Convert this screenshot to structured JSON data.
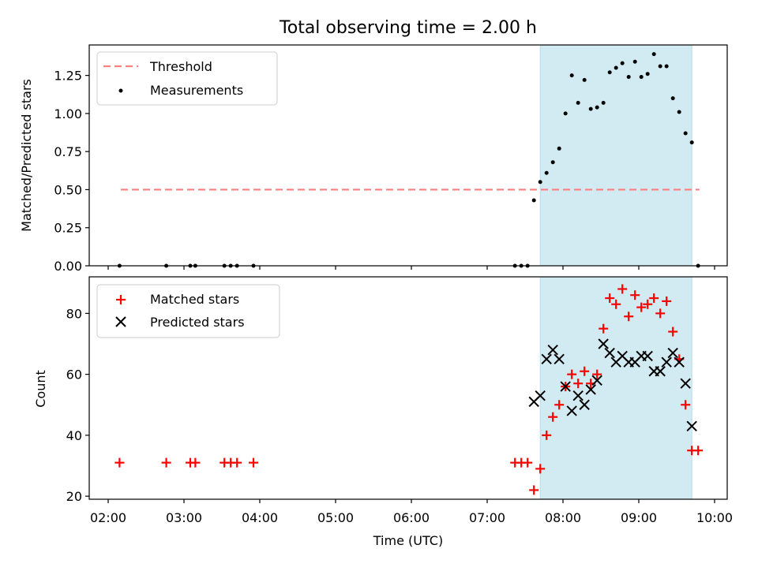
{
  "title": "Total observing time = 2.00 h",
  "chart_data": [
    {
      "type": "scatter",
      "ylabel": "Matched/Predicted stars",
      "ylim": [
        0,
        1.45
      ],
      "xlim": [
        "01:45",
        "10:10"
      ],
      "yticks": [
        0.0,
        0.25,
        0.5,
        0.75,
        1.0,
        1.25
      ],
      "yticklabels": [
        "0.00",
        "0.25",
        "0.50",
        "0.75",
        "1.00",
        "1.25"
      ],
      "grid": false,
      "legend_position": "top-left",
      "shaded_span": {
        "start": "07:42",
        "end": "09:42",
        "color": "#add8e6"
      },
      "threshold": {
        "name": "Threshold",
        "value": 0.5,
        "x": [
          "02:10",
          "09:48"
        ],
        "color": "#ff7f7f",
        "style": "dashed"
      },
      "series": [
        {
          "name": "Measurements",
          "marker": "dot",
          "color": "#000000",
          "points": [
            [
              "02:09",
              0
            ],
            [
              "02:46",
              0
            ],
            [
              "03:05",
              0
            ],
            [
              "03:09",
              0
            ],
            [
              "03:32",
              0
            ],
            [
              "03:37",
              0
            ],
            [
              "03:42",
              0
            ],
            [
              "03:55",
              0
            ],
            [
              "07:22",
              0
            ],
            [
              "07:27",
              0
            ],
            [
              "07:32",
              0
            ],
            [
              "07:37",
              0.43
            ],
            [
              "07:42",
              0.55
            ],
            [
              "07:47",
              0.61
            ],
            [
              "07:52",
              0.68
            ],
            [
              "07:57",
              0.77
            ],
            [
              "08:02",
              1.0
            ],
            [
              "08:07",
              1.25
            ],
            [
              "08:12",
              1.07
            ],
            [
              "08:17",
              1.22
            ],
            [
              "08:22",
              1.03
            ],
            [
              "08:27",
              1.04
            ],
            [
              "08:32",
              1.07
            ],
            [
              "08:37",
              1.27
            ],
            [
              "08:42",
              1.3
            ],
            [
              "08:47",
              1.33
            ],
            [
              "08:52",
              1.24
            ],
            [
              "08:57",
              1.34
            ],
            [
              "09:02",
              1.24
            ],
            [
              "09:07",
              1.26
            ],
            [
              "09:12",
              1.39
            ],
            [
              "09:17",
              1.31
            ],
            [
              "09:22",
              1.31
            ],
            [
              "09:27",
              1.1
            ],
            [
              "09:32",
              1.01
            ],
            [
              "09:37",
              0.87
            ],
            [
              "09:42",
              0.81
            ],
            [
              "09:47",
              0
            ]
          ]
        }
      ]
    },
    {
      "type": "scatter",
      "xlabel": "Time (UTC)",
      "ylabel": "Count",
      "ylim": [
        19,
        92
      ],
      "xlim": [
        "01:45",
        "10:10"
      ],
      "xticks": [
        "02:00",
        "03:00",
        "04:00",
        "05:00",
        "06:00",
        "07:00",
        "08:00",
        "09:00",
        "10:00"
      ],
      "yticks": [
        20,
        40,
        60,
        80
      ],
      "grid": false,
      "legend_position": "top-left",
      "shaded_span": {
        "start": "07:42",
        "end": "09:42",
        "color": "#add8e6"
      },
      "series": [
        {
          "name": "Matched stars",
          "marker": "plus",
          "color": "#ff0000",
          "points": [
            [
              "02:09",
              31
            ],
            [
              "02:46",
              31
            ],
            [
              "03:05",
              31
            ],
            [
              "03:09",
              31
            ],
            [
              "03:32",
              31
            ],
            [
              "03:37",
              31
            ],
            [
              "03:42",
              31
            ],
            [
              "03:55",
              31
            ],
            [
              "07:22",
              31
            ],
            [
              "07:27",
              31
            ],
            [
              "07:32",
              31
            ],
            [
              "07:37",
              22
            ],
            [
              "07:42",
              29
            ],
            [
              "07:47",
              40
            ],
            [
              "07:52",
              46
            ],
            [
              "07:57",
              50
            ],
            [
              "08:02",
              56
            ],
            [
              "08:07",
              60
            ],
            [
              "08:12",
              57
            ],
            [
              "08:17",
              61
            ],
            [
              "08:22",
              57
            ],
            [
              "08:27",
              60
            ],
            [
              "08:32",
              75
            ],
            [
              "08:37",
              85
            ],
            [
              "08:42",
              83
            ],
            [
              "08:47",
              88
            ],
            [
              "08:52",
              79
            ],
            [
              "08:57",
              86
            ],
            [
              "09:02",
              82
            ],
            [
              "09:07",
              83
            ],
            [
              "09:12",
              85
            ],
            [
              "09:17",
              80
            ],
            [
              "09:22",
              84
            ],
            [
              "09:27",
              74
            ],
            [
              "09:32",
              65
            ],
            [
              "09:37",
              50
            ],
            [
              "09:42",
              35
            ],
            [
              "09:47",
              35
            ]
          ]
        },
        {
          "name": "Predicted stars",
          "marker": "x",
          "color": "#000000",
          "points": [
            [
              "07:37",
              51
            ],
            [
              "07:42",
              53
            ],
            [
              "07:47",
              65
            ],
            [
              "07:52",
              68
            ],
            [
              "07:57",
              65
            ],
            [
              "08:02",
              56
            ],
            [
              "08:07",
              48
            ],
            [
              "08:12",
              53
            ],
            [
              "08:17",
              50
            ],
            [
              "08:22",
              55
            ],
            [
              "08:27",
              58
            ],
            [
              "08:32",
              70
            ],
            [
              "08:37",
              67
            ],
            [
              "08:42",
              64
            ],
            [
              "08:47",
              66
            ],
            [
              "08:52",
              64
            ],
            [
              "08:57",
              64
            ],
            [
              "09:02",
              66
            ],
            [
              "09:07",
              66
            ],
            [
              "09:12",
              61
            ],
            [
              "09:17",
              61
            ],
            [
              "09:22",
              64
            ],
            [
              "09:27",
              67
            ],
            [
              "09:32",
              64
            ],
            [
              "09:37",
              57
            ],
            [
              "09:42",
              43
            ]
          ]
        }
      ]
    }
  ]
}
